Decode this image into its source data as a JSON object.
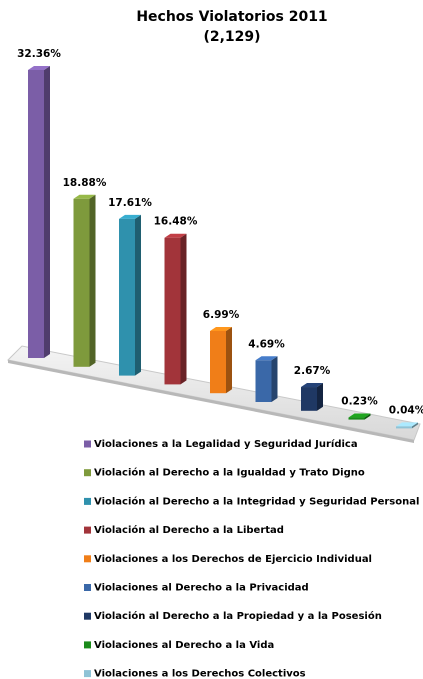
{
  "chart_data": {
    "type": "bar",
    "title": "Hechos Violatorios 2011",
    "subtitle": "(2,129)",
    "categories": [
      "Violaciones a la Legalidad y Seguridad Jurídica",
      "Violación al Derecho a la Igualdad y Trato Digno",
      "Violación al Derecho a la Integridad y Seguridad Personal",
      "Violación al Derecho a la Libertad",
      "Violaciones a los Derechos de Ejercicio Individual",
      "Violaciones al Derecho a la Privacidad",
      "Violación al Derecho a la Propiedad y a la Posesión",
      "Violaciones al Derecho a la Vida",
      "Violaciones a los Derechos Colectivos"
    ],
    "values": [
      32.36,
      18.88,
      17.61,
      16.48,
      6.99,
      4.69,
      2.67,
      0.23,
      0.04
    ],
    "value_labels": [
      "32.36%",
      "18.88%",
      "17.61%",
      "16.48%",
      "6.99%",
      "4.69%",
      "2.67%",
      "0.23%",
      "0.04%"
    ],
    "colors": [
      "#7b5ea7",
      "#7e9a3c",
      "#2f91ad",
      "#a2343a",
      "#f07e18",
      "#3a68a8",
      "#1f3864",
      "#1a8a1a",
      "#8fc3d6"
    ]
  }
}
